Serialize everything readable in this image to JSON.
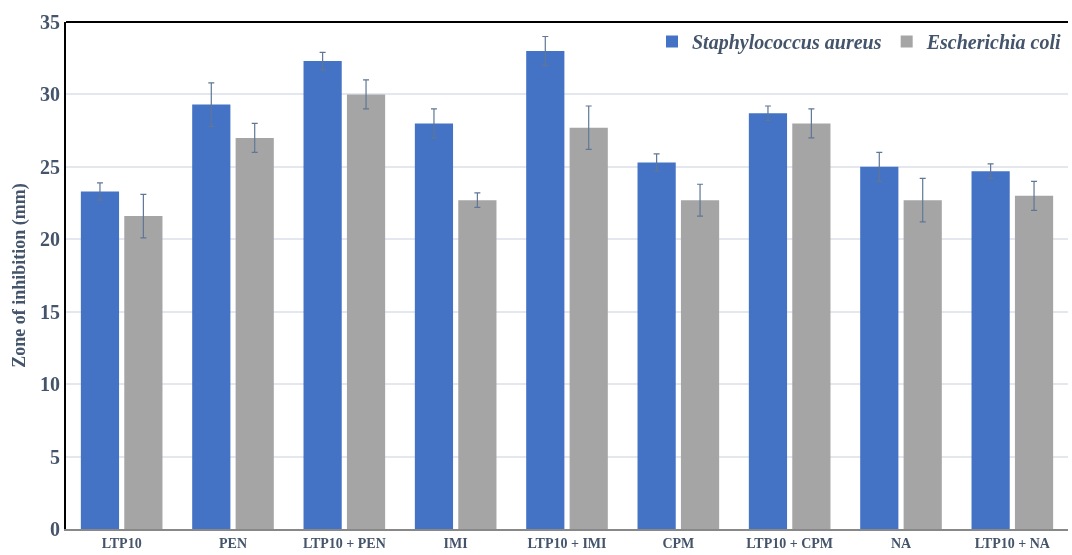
{
  "chart_data": {
    "type": "bar",
    "ylabel": "Zone of inhibition (mm)",
    "categories": [
      "LTP10",
      "PEN",
      "LTP10 + PEN",
      "IMI",
      "LTP10 + IMI",
      "CPM",
      "LTP10 + CPM",
      "NA",
      "LTP10 + NA"
    ],
    "series": [
      {
        "name": "Staphylococcus aureus",
        "color": "#4472c4",
        "values": [
          23.3,
          29.3,
          32.3,
          28.0,
          33.0,
          25.3,
          28.7,
          25.0,
          24.7
        ],
        "errors": [
          0.6,
          1.5,
          0.6,
          1.0,
          1.0,
          0.6,
          0.5,
          1.0,
          0.5
        ]
      },
      {
        "name": "Escherichia coli",
        "color": "#a5a5a5",
        "values": [
          21.6,
          27.0,
          30.0,
          22.7,
          27.7,
          22.7,
          28.0,
          22.7,
          23.0
        ],
        "errors": [
          1.5,
          1.0,
          1.0,
          0.5,
          1.5,
          1.1,
          1.0,
          1.5,
          1.0
        ]
      }
    ],
    "ylim": [
      0,
      35
    ],
    "yticks": [
      0,
      5,
      10,
      15,
      20,
      25,
      30,
      35
    ],
    "grid": "y",
    "legend": "top right"
  }
}
